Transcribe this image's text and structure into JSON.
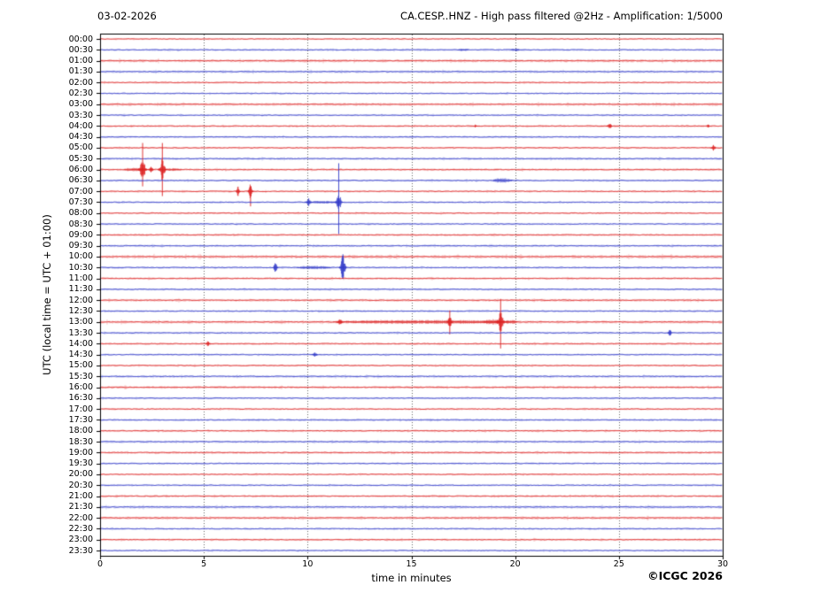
{
  "chart_data": {
    "type": "line",
    "subtype": "helicorder-seismogram",
    "title_left": "03-02-2026",
    "title_right": "CA.CESP..HNZ - High pass filtered @2Hz - Amplification: 1/5000",
    "xlabel": "time in minutes",
    "ylabel": "UTC (local time = UTC + 01:00)",
    "copyright": "©ICGC 2026",
    "xlim": [
      0,
      30
    ],
    "xticks": [
      0,
      5,
      10,
      15,
      20,
      25,
      30
    ],
    "minutes_per_line": 30,
    "grid": "vertical dotted gridlines at 5-minute intervals",
    "palette": {
      "red": "#dd2222",
      "blue": "#3038c8",
      "grid": "#666666",
      "frame": "#000000"
    },
    "color_pattern": "lines alternate red (on the hour) and blue (on the half hour)",
    "event_fields": {
      "m": "minutes from line start",
      "w": "width in minutes",
      "a": "peak amplitude px",
      "spike": "[up,down] tall spike extent px",
      "f": "true = low-level fuzz band"
    },
    "rows": [
      {
        "label": "00:00",
        "color": "red",
        "noise": 0.7
      },
      {
        "label": "00:30",
        "color": "blue",
        "noise": 0.9,
        "events": [
          {
            "m": 17.5,
            "w": 0.5,
            "a": 1.5,
            "f": true
          },
          {
            "m": 20.0,
            "w": 0.4,
            "a": 1.5,
            "f": true
          }
        ]
      },
      {
        "label": "01:00",
        "color": "red",
        "noise": 1.5
      },
      {
        "label": "01:30",
        "color": "blue",
        "noise": 1.3
      },
      {
        "label": "02:00",
        "color": "red",
        "noise": 0.9
      },
      {
        "label": "02:30",
        "color": "blue",
        "noise": 0.8
      },
      {
        "label": "03:00",
        "color": "red",
        "noise": 1.4
      },
      {
        "label": "03:30",
        "color": "blue",
        "noise": 0.9
      },
      {
        "label": "04:00",
        "color": "red",
        "noise": 0.9,
        "events": [
          {
            "m": 18.1,
            "w": 0.2,
            "a": 2
          },
          {
            "m": 24.55,
            "w": 0.35,
            "a": 3
          },
          {
            "m": 29.3,
            "w": 0.2,
            "a": 2
          }
        ]
      },
      {
        "label": "04:30",
        "color": "blue",
        "noise": 1.0
      },
      {
        "label": "05:00",
        "color": "red",
        "noise": 0.9,
        "events": [
          {
            "m": 29.55,
            "w": 0.3,
            "a": 4
          }
        ]
      },
      {
        "label": "05:30",
        "color": "blue",
        "noise": 1.1
      },
      {
        "label": "06:00",
        "color": "red",
        "noise": 1.1,
        "events": [
          {
            "m": 1.7,
            "w": 1.1,
            "a": 2,
            "f": true
          },
          {
            "m": 2.05,
            "w": 0.5,
            "a": 11,
            "spike": [
              30,
              19
            ]
          },
          {
            "m": 2.45,
            "w": 0.35,
            "a": 3
          },
          {
            "m": 3.0,
            "w": 0.45,
            "a": 11,
            "spike": [
              30,
              30
            ]
          },
          {
            "m": 3.5,
            "w": 0.8,
            "a": 1.5,
            "f": true
          }
        ]
      },
      {
        "label": "06:30",
        "color": "blue",
        "noise": 1.0,
        "events": [
          {
            "m": 19.4,
            "w": 0.9,
            "a": 2.5,
            "f": true
          }
        ]
      },
      {
        "label": "07:00",
        "color": "red",
        "noise": 0.9,
        "events": [
          {
            "m": 6.65,
            "w": 0.25,
            "a": 5
          },
          {
            "m": 7.25,
            "w": 0.3,
            "a": 8,
            "spike": [
              6,
              17
            ]
          }
        ]
      },
      {
        "label": "07:30",
        "color": "blue",
        "noise": 0.9,
        "events": [
          {
            "m": 10.05,
            "w": 0.4,
            "a": 5
          },
          {
            "m": 10.8,
            "w": 1.2,
            "a": 1.5,
            "f": true
          },
          {
            "m": 11.5,
            "w": 0.45,
            "a": 9,
            "spike": [
              44,
              36
            ]
          }
        ]
      },
      {
        "label": "08:00",
        "color": "red",
        "noise": 0.9
      },
      {
        "label": "08:30",
        "color": "blue",
        "noise": 0.9
      },
      {
        "label": "09:00",
        "color": "red",
        "noise": 1.0
      },
      {
        "label": "09:30",
        "color": "blue",
        "noise": 1.1
      },
      {
        "label": "10:00",
        "color": "red",
        "noise": 1.7
      },
      {
        "label": "10:30",
        "color": "blue",
        "noise": 1.0,
        "events": [
          {
            "m": 8.45,
            "w": 0.3,
            "a": 5
          },
          {
            "m": 10.3,
            "w": 1.6,
            "a": 1.8,
            "f": true
          },
          {
            "m": 11.7,
            "w": 0.4,
            "a": 13,
            "spike": [
              15,
              10
            ]
          }
        ]
      },
      {
        "label": "11:00",
        "color": "red",
        "noise": 1.0
      },
      {
        "label": "11:30",
        "color": "blue",
        "noise": 1.0
      },
      {
        "label": "12:00",
        "color": "red",
        "noise": 1.3
      },
      {
        "label": "12:30",
        "color": "blue",
        "noise": 0.9
      },
      {
        "label": "13:00",
        "color": "red",
        "noise": 1.5,
        "events": [
          {
            "m": 15.5,
            "w": 8.5,
            "a": 2,
            "f": true
          },
          {
            "m": 11.55,
            "w": 0.35,
            "a": 4
          },
          {
            "m": 16.85,
            "w": 0.3,
            "a": 9,
            "spike": [
              13,
              14
            ]
          },
          {
            "m": 18.9,
            "w": 0.8,
            "a": 3,
            "f": true
          },
          {
            "m": 19.3,
            "w": 0.5,
            "a": 10,
            "spike": [
              26,
              30
            ]
          },
          {
            "m": 19.8,
            "w": 0.6,
            "a": 2,
            "f": true
          }
        ]
      },
      {
        "label": "13:30",
        "color": "blue",
        "noise": 1.0,
        "events": [
          {
            "m": 27.45,
            "w": 0.25,
            "a": 4
          }
        ]
      },
      {
        "label": "14:00",
        "color": "red",
        "noise": 1.0,
        "events": [
          {
            "m": 5.2,
            "w": 0.3,
            "a": 3
          }
        ]
      },
      {
        "label": "14:30",
        "color": "blue",
        "noise": 0.9,
        "events": [
          {
            "m": 10.35,
            "w": 0.35,
            "a": 3
          }
        ]
      },
      {
        "label": "15:00",
        "color": "red",
        "noise": 0.9
      },
      {
        "label": "15:30",
        "color": "blue",
        "noise": 1.2
      },
      {
        "label": "16:00",
        "color": "red",
        "noise": 1.2
      },
      {
        "label": "16:30",
        "color": "blue",
        "noise": 1.0
      },
      {
        "label": "17:00",
        "color": "red",
        "noise": 0.9
      },
      {
        "label": "17:30",
        "color": "blue",
        "noise": 1.0
      },
      {
        "label": "18:00",
        "color": "red",
        "noise": 1.0
      },
      {
        "label": "18:30",
        "color": "blue",
        "noise": 1.2
      },
      {
        "label": "19:00",
        "color": "red",
        "noise": 1.1
      },
      {
        "label": "19:30",
        "color": "blue",
        "noise": 0.9
      },
      {
        "label": "20:00",
        "color": "red",
        "noise": 0.8
      },
      {
        "label": "20:30",
        "color": "blue",
        "noise": 0.9
      },
      {
        "label": "21:00",
        "color": "red",
        "noise": 1.0
      },
      {
        "label": "21:30",
        "color": "blue",
        "noise": 1.4
      },
      {
        "label": "22:00",
        "color": "red",
        "noise": 1.4
      },
      {
        "label": "22:30",
        "color": "blue",
        "noise": 0.9
      },
      {
        "label": "23:00",
        "color": "red",
        "noise": 1.0
      },
      {
        "label": "23:30",
        "color": "blue",
        "noise": 0.8
      }
    ]
  }
}
